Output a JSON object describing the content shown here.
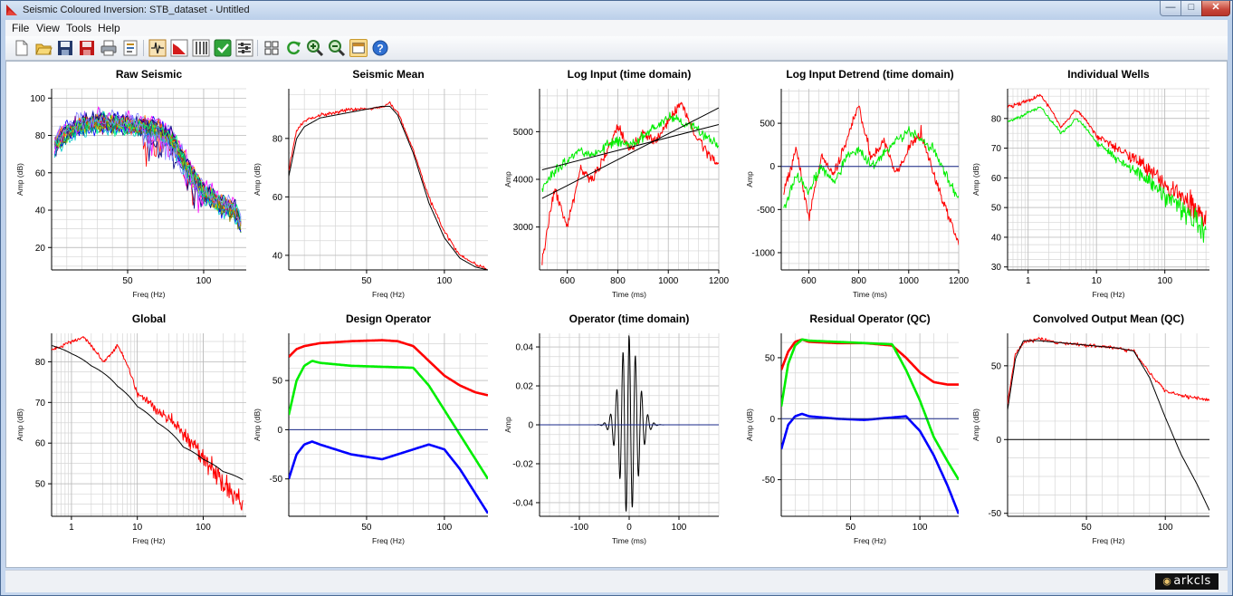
{
  "window": {
    "title": "Seismic Coloured Inversion: STB_dataset - Untitled",
    "min_glyph": "—",
    "max_glyph": "□",
    "close_glyph": "✕"
  },
  "menu": [
    "File",
    "View",
    "Tools",
    "Help"
  ],
  "toolbar_icons": [
    "new-file-icon",
    "open-folder-icon",
    "save-icon",
    "save-as-icon",
    "print-icon",
    "properties-icon",
    "wavelet-icon",
    "spectrum-icon",
    "filter-bank-icon",
    "check-icon",
    "settings-sliders-icon",
    "grid-layout-icon",
    "refresh-icon",
    "zoom-in-icon",
    "zoom-out-icon",
    "panel-toggle-icon",
    "help-icon"
  ],
  "colors": {
    "red": "#ff0000",
    "green": "#00ee00",
    "blue": "#0000ff",
    "black": "#000000",
    "zero_line": "#1a2a8a",
    "grid": "#d6d6d6"
  },
  "status": {
    "logo_text": "arkcls"
  },
  "chart_data": [
    {
      "id": "raw-seismic",
      "type": "line",
      "title": "Raw Seismic",
      "xlabel": "Freq (Hz)",
      "ylabel": "Amp (dB)",
      "xscale": "linear",
      "xlim": [
        0,
        128
      ],
      "ylim": [
        8,
        105
      ],
      "xticks": [
        50,
        100
      ],
      "yticks": [
        20,
        40,
        60,
        80,
        100
      ],
      "series": [
        {
          "style": "multicolor-traces",
          "envelope_x": [
            2,
            10,
            20,
            30,
            40,
            50,
            60,
            70,
            80,
            90,
            100,
            110,
            120,
            125
          ],
          "envelope_y": [
            75,
            82,
            86,
            87,
            87,
            86,
            85,
            84,
            77,
            62,
            50,
            44,
            40,
            32
          ]
        }
      ]
    },
    {
      "id": "seismic-mean",
      "type": "line",
      "title": "Seismic Mean",
      "xlabel": "Freq (Hz)",
      "ylabel": "Amp (dB)",
      "xscale": "linear",
      "xlim": [
        0,
        128
      ],
      "ylim": [
        35,
        97
      ],
      "xticks": [
        50,
        100
      ],
      "yticks": [
        40,
        60,
        80
      ],
      "series": [
        {
          "color": "red",
          "x": [
            0,
            5,
            10,
            20,
            30,
            40,
            50,
            60,
            65,
            70,
            80,
            90,
            100,
            110,
            120,
            128
          ],
          "y": [
            69,
            83,
            86,
            88,
            89,
            90,
            90,
            91,
            92,
            89,
            76,
            60,
            48,
            40,
            37,
            35
          ]
        },
        {
          "color": "black",
          "x": [
            0,
            5,
            10,
            20,
            30,
            40,
            50,
            60,
            65,
            70,
            80,
            90,
            100,
            110,
            120,
            128
          ],
          "y": [
            67,
            80,
            84,
            87,
            88,
            89,
            90,
            91,
            91,
            88,
            75,
            58,
            46,
            39,
            36,
            35
          ]
        }
      ]
    },
    {
      "id": "log-input",
      "type": "line",
      "title": "Log Input (time domain)",
      "xlabel": "Time (ms)",
      "ylabel": "Amp",
      "xscale": "linear",
      "xlim": [
        490,
        1200
      ],
      "ylim": [
        2100,
        5900
      ],
      "xticks": [
        600,
        800,
        1000,
        1200
      ],
      "yticks": [
        3000,
        4000,
        5000
      ],
      "series": [
        {
          "color": "red",
          "x": [
            500,
            550,
            600,
            650,
            700,
            750,
            800,
            850,
            900,
            950,
            1000,
            1050,
            1100,
            1150,
            1200
          ],
          "y": [
            2300,
            3800,
            3000,
            4200,
            4000,
            4500,
            5100,
            4600,
            5000,
            4800,
            5200,
            5600,
            5000,
            4600,
            4300
          ]
        },
        {
          "color": "green",
          "x": [
            500,
            550,
            600,
            650,
            700,
            750,
            800,
            850,
            900,
            950,
            1000,
            1050,
            1100,
            1150,
            1200
          ],
          "y": [
            3800,
            4200,
            4400,
            4600,
            4500,
            4700,
            4800,
            4700,
            4900,
            5100,
            5300,
            5200,
            5100,
            4900,
            4700
          ]
        },
        {
          "color": "black",
          "x": [
            500,
            1200
          ],
          "y": [
            3600,
            5500
          ]
        },
        {
          "color": "black",
          "x": [
            500,
            1200
          ],
          "y": [
            4200,
            5150
          ]
        }
      ]
    },
    {
      "id": "log-input-detrend",
      "type": "line",
      "title": "Log Input Detrend (time domain)",
      "xlabel": "Time (ms)",
      "ylabel": "Amp",
      "xscale": "linear",
      "xlim": [
        490,
        1200
      ],
      "ylim": [
        -1200,
        900
      ],
      "xticks": [
        600,
        800,
        1000,
        1200
      ],
      "yticks": [
        -1000,
        -500,
        0,
        500
      ],
      "series": [
        {
          "color": "red",
          "x": [
            500,
            550,
            600,
            650,
            700,
            750,
            800,
            850,
            900,
            950,
            1000,
            1050,
            1100,
            1150,
            1200
          ],
          "y": [
            -300,
            200,
            -600,
            100,
            -100,
            300,
            700,
            100,
            300,
            -100,
            200,
            400,
            -100,
            -500,
            -900
          ]
        },
        {
          "color": "green",
          "x": [
            500,
            550,
            600,
            650,
            700,
            750,
            800,
            850,
            900,
            950,
            1000,
            1050,
            1100,
            1150,
            1200
          ],
          "y": [
            -500,
            -100,
            -300,
            0,
            -200,
            100,
            200,
            0,
            150,
            300,
            400,
            300,
            200,
            -100,
            -400
          ]
        },
        {
          "color": "zero_line",
          "x": [
            490,
            1200
          ],
          "y": [
            0,
            0
          ]
        }
      ]
    },
    {
      "id": "individual-wells",
      "type": "line",
      "title": "Individual Wells",
      "xlabel": "Freq (Hz)",
      "ylabel": "Amp (dB)",
      "xscale": "log",
      "xlim": [
        0.5,
        450
      ],
      "ylim": [
        29,
        90
      ],
      "xticks": [
        1,
        10,
        100
      ],
      "yticks": [
        30,
        40,
        50,
        60,
        70,
        80
      ],
      "series": [
        {
          "color": "red",
          "x": [
            0.5,
            1,
            1.5,
            2,
            3,
            5,
            10,
            20,
            50,
            100,
            200,
            400
          ],
          "y": [
            84,
            86,
            88,
            84,
            77,
            83,
            74,
            70,
            64,
            58,
            52,
            45
          ]
        },
        {
          "color": "green",
          "x": [
            0.5,
            1,
            1.5,
            2,
            3,
            5,
            10,
            20,
            50,
            100,
            200,
            400
          ],
          "y": [
            79,
            82,
            84,
            80,
            75,
            80,
            72,
            66,
            60,
            54,
            48,
            42
          ]
        }
      ]
    },
    {
      "id": "global",
      "type": "line",
      "title": "Global",
      "xlabel": "Freq (Hz)",
      "ylabel": "Amp (dB)",
      "xscale": "log",
      "xlim": [
        0.5,
        450
      ],
      "ylim": [
        42,
        87
      ],
      "xticks": [
        1,
        10,
        100
      ],
      "yticks": [
        50,
        60,
        70,
        80
      ],
      "series": [
        {
          "color": "red",
          "x": [
            0.5,
            1,
            1.5,
            2,
            3,
            5,
            10,
            20,
            50,
            100,
            200,
            400
          ],
          "y": [
            83,
            85,
            86,
            84,
            80,
            84,
            72,
            68,
            62,
            56,
            50,
            45
          ]
        },
        {
          "color": "black",
          "x": [
            0.5,
            1,
            2,
            5,
            10,
            20,
            50,
            100,
            200,
            400
          ],
          "y": [
            84,
            82,
            79,
            74,
            69,
            65,
            59,
            56,
            53,
            51
          ]
        }
      ]
    },
    {
      "id": "design-operator",
      "type": "line",
      "title": "Design Operator",
      "xlabel": "Freq (Hz)",
      "ylabel": "Amp (dB)",
      "xscale": "linear",
      "xlim": [
        0,
        128
      ],
      "ylim": [
        -88,
        98
      ],
      "xticks": [
        50,
        100
      ],
      "yticks": [
        -50,
        0,
        50
      ],
      "series": [
        {
          "color": "red",
          "x": [
            0,
            5,
            10,
            20,
            40,
            60,
            70,
            80,
            90,
            100,
            110,
            120,
            128
          ],
          "y": [
            74,
            82,
            85,
            88,
            90,
            91,
            90,
            85,
            70,
            55,
            45,
            38,
            35
          ]
        },
        {
          "color": "green",
          "x": [
            0,
            5,
            10,
            15,
            20,
            40,
            60,
            80,
            90,
            100,
            110,
            120,
            128
          ],
          "y": [
            15,
            50,
            65,
            70,
            68,
            65,
            64,
            63,
            45,
            20,
            -5,
            -30,
            -50
          ]
        },
        {
          "color": "blue",
          "x": [
            0,
            5,
            10,
            15,
            20,
            40,
            60,
            80,
            90,
            100,
            110,
            120,
            128
          ],
          "y": [
            -50,
            -25,
            -15,
            -12,
            -15,
            -25,
            -30,
            -20,
            -15,
            -20,
            -40,
            -65,
            -85
          ]
        },
        {
          "color": "zero_line",
          "x": [
            0,
            128
          ],
          "y": [
            0,
            0
          ]
        }
      ]
    },
    {
      "id": "operator-time",
      "type": "line",
      "title": "Operator (time domain)",
      "xlabel": "Time (ms)",
      "ylabel": "Amp",
      "xscale": "linear",
      "xlim": [
        -180,
        180
      ],
      "ylim": [
        -0.047,
        0.047
      ],
      "xticks": [
        -100,
        0,
        100
      ],
      "yticks": [
        -0.04,
        -0.02,
        0,
        0.02,
        0.04
      ],
      "series": [
        {
          "color": "black",
          "style": "wavelet"
        },
        {
          "color": "zero_line",
          "x": [
            -180,
            180
          ],
          "y": [
            0,
            0
          ]
        }
      ]
    },
    {
      "id": "residual-operator",
      "type": "line",
      "title": "Residual Operator (QC)",
      "xlabel": "Freq (Hz)",
      "ylabel": "Amp (dB)",
      "xscale": "linear",
      "xlim": [
        0,
        128
      ],
      "ylim": [
        -80,
        70
      ],
      "xticks": [
        50,
        100
      ],
      "yticks": [
        -50,
        0,
        50
      ],
      "series": [
        {
          "color": "red",
          "x": [
            0,
            5,
            10,
            15,
            20,
            40,
            60,
            80,
            90,
            100,
            110,
            120,
            128
          ],
          "y": [
            40,
            55,
            63,
            65,
            63,
            62,
            62,
            60,
            50,
            38,
            30,
            28,
            28
          ]
        },
        {
          "color": "green",
          "x": [
            0,
            5,
            10,
            15,
            20,
            40,
            60,
            80,
            90,
            100,
            110,
            120,
            128
          ],
          "y": [
            10,
            45,
            60,
            65,
            64,
            63,
            62,
            61,
            40,
            15,
            -15,
            -35,
            -50
          ]
        },
        {
          "color": "blue",
          "x": [
            0,
            5,
            10,
            15,
            20,
            40,
            60,
            80,
            90,
            100,
            110,
            120,
            128
          ],
          "y": [
            -25,
            -5,
            2,
            4,
            2,
            0,
            -1,
            1,
            2,
            -10,
            -30,
            -55,
            -78
          ]
        },
        {
          "color": "zero_line",
          "x": [
            0,
            128
          ],
          "y": [
            0,
            0
          ]
        }
      ]
    },
    {
      "id": "convolved-output",
      "type": "line",
      "title": "Convolved Output Mean (QC)",
      "xlabel": "Freq (Hz)",
      "ylabel": "Amp (dB)",
      "xscale": "linear",
      "xlim": [
        0,
        128
      ],
      "ylim": [
        -52,
        72
      ],
      "xticks": [
        50,
        100
      ],
      "yticks": [
        -50,
        0,
        50
      ],
      "series": [
        {
          "color": "red",
          "x": [
            0,
            5,
            10,
            20,
            30,
            40,
            50,
            60,
            70,
            80,
            90,
            100,
            110,
            120,
            128
          ],
          "y": [
            25,
            58,
            66,
            68,
            66,
            65,
            64,
            63,
            62,
            60,
            45,
            33,
            30,
            28,
            27
          ]
        },
        {
          "color": "black",
          "x": [
            0,
            5,
            10,
            20,
            30,
            40,
            50,
            60,
            70,
            80,
            90,
            100,
            110,
            120,
            128
          ],
          "y": [
            20,
            55,
            67,
            67,
            66,
            65,
            64,
            63,
            62,
            60,
            42,
            15,
            -10,
            -30,
            -48
          ]
        },
        {
          "color": "black",
          "x": [
            0,
            128
          ],
          "y": [
            0,
            0
          ]
        }
      ]
    }
  ]
}
